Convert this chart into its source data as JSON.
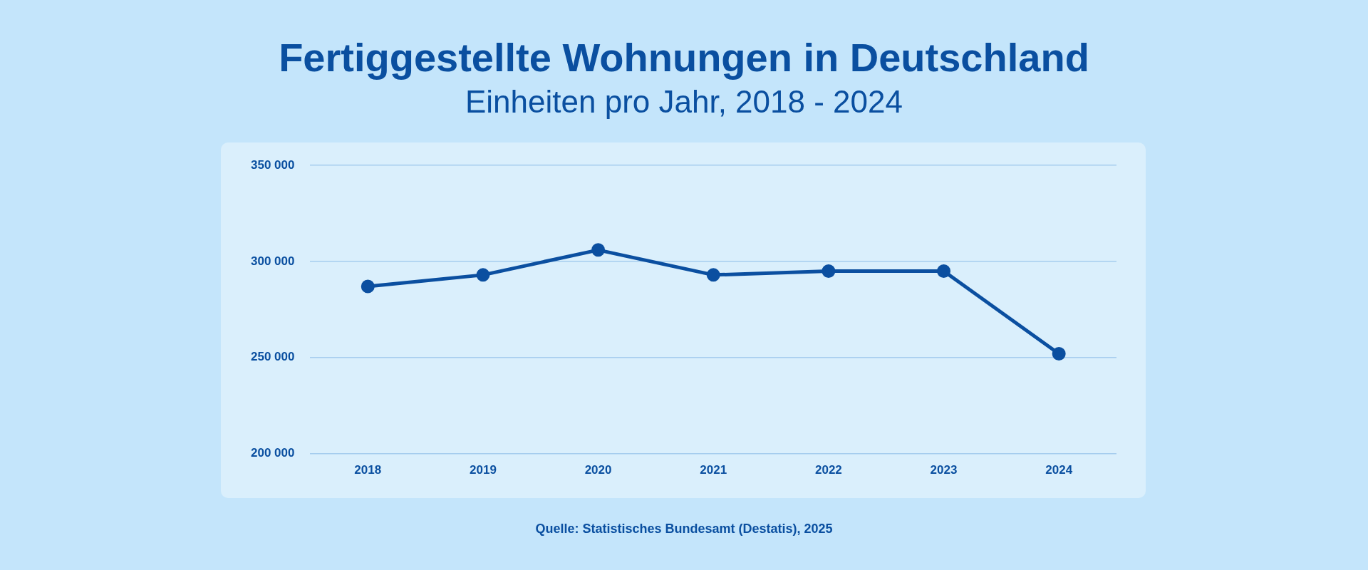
{
  "chart_data": {
    "type": "line",
    "title": "Fertiggestellte Wohnungen in Deutschland",
    "subtitle": "Einheiten pro Jahr, 2018 - 2024",
    "categories": [
      "2018",
      "2019",
      "2020",
      "2021",
      "2022",
      "2023",
      "2024"
    ],
    "series": [
      {
        "color": "#0b4fa0",
        "values": [
          287000,
          293000,
          306000,
          293000,
          295000,
          295000,
          252000
        ]
      }
    ],
    "ylim": [
      200000,
      350000
    ],
    "yticks": [
      {
        "value": 200000,
        "label": "200 000"
      },
      {
        "value": 250000,
        "label": "250 000"
      },
      {
        "value": 300000,
        "label": "300 000"
      },
      {
        "value": 350000,
        "label": "350 000"
      }
    ],
    "grid": "y",
    "legend": false,
    "marker": "circle",
    "line_style": "solid",
    "annotations": [
      "Quelle: Statistisches Bundesamt (Destatis), 2025"
    ]
  }
}
